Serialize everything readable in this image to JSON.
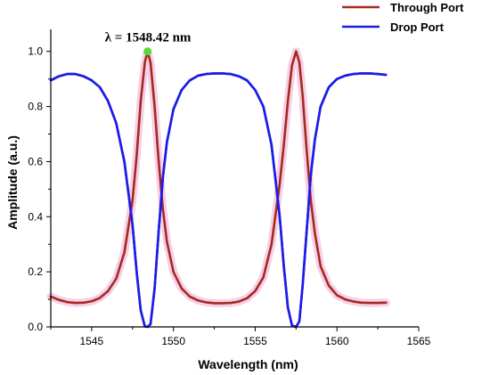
{
  "chart_data": {
    "type": "line",
    "xlabel": "Wavelength (nm)",
    "ylabel": "Amplitude (a.u.)",
    "xlim": [
      1542.5,
      1565
    ],
    "ylim": [
      0,
      1.08
    ],
    "x_ticks": [
      1545,
      1550,
      1555,
      1560,
      1565
    ],
    "x_tick_labels": [
      "1545",
      "1550",
      "1555",
      "1560",
      "1565"
    ],
    "y_ticks": [
      0.0,
      0.2,
      0.4,
      0.6,
      0.8,
      1.0
    ],
    "y_tick_labels": [
      "0.0",
      "0.2",
      "0.4",
      "0.6",
      "0.8",
      "1.0"
    ],
    "grid": false,
    "legend_position": "top-right",
    "annotation": {
      "text": "λ = 1548.42 nm",
      "x": 1548.42,
      "y": 1.0,
      "marker_color": "#55dd33"
    },
    "series": [
      {
        "name": "Through Port",
        "color": "#a52a1e",
        "halo_color": "#f4c7e4",
        "x": [
          1542.5,
          1543,
          1543.5,
          1544,
          1544.5,
          1545,
          1545.5,
          1546,
          1546.5,
          1547,
          1547.5,
          1547.75,
          1548,
          1548.25,
          1548.42,
          1548.6,
          1548.85,
          1549.1,
          1549.35,
          1549.6,
          1550,
          1550.5,
          1551,
          1551.5,
          1552,
          1552.5,
          1553,
          1553.5,
          1554,
          1554.5,
          1555,
          1555.5,
          1556,
          1556.5,
          1556.75,
          1557,
          1557.25,
          1557.5,
          1557.7,
          1557.9,
          1558.15,
          1558.4,
          1558.65,
          1559,
          1559.5,
          1560,
          1560.5,
          1561,
          1561.5,
          1562,
          1562.5,
          1563
        ],
        "y": [
          0.11,
          0.098,
          0.09,
          0.087,
          0.088,
          0.093,
          0.105,
          0.13,
          0.175,
          0.27,
          0.46,
          0.62,
          0.82,
          0.96,
          1.0,
          0.96,
          0.8,
          0.6,
          0.43,
          0.31,
          0.2,
          0.14,
          0.11,
          0.096,
          0.089,
          0.086,
          0.086,
          0.087,
          0.092,
          0.104,
          0.13,
          0.18,
          0.3,
          0.52,
          0.66,
          0.82,
          0.95,
          1.0,
          0.96,
          0.84,
          0.64,
          0.46,
          0.34,
          0.22,
          0.15,
          0.115,
          0.1,
          0.092,
          0.088,
          0.087,
          0.087,
          0.088
        ]
      },
      {
        "name": "Drop Port",
        "color": "#1c1ce8",
        "x": [
          1542.5,
          1543,
          1543.5,
          1544,
          1544.5,
          1545,
          1545.5,
          1546,
          1546.5,
          1547,
          1547.5,
          1547.75,
          1548,
          1548.25,
          1548.42,
          1548.6,
          1548.85,
          1549.1,
          1549.35,
          1549.6,
          1550,
          1550.5,
          1551,
          1551.5,
          1552,
          1552.5,
          1553,
          1553.5,
          1554,
          1554.5,
          1555,
          1555.5,
          1556,
          1556.5,
          1556.75,
          1557,
          1557.25,
          1557.5,
          1557.7,
          1557.9,
          1558.15,
          1558.4,
          1558.65,
          1559,
          1559.5,
          1560,
          1560.5,
          1561,
          1561.5,
          1562,
          1562.5,
          1563
        ],
        "y": [
          0.895,
          0.91,
          0.918,
          0.918,
          0.91,
          0.895,
          0.87,
          0.82,
          0.74,
          0.6,
          0.37,
          0.2,
          0.06,
          0.002,
          0.0,
          0.01,
          0.14,
          0.35,
          0.54,
          0.67,
          0.79,
          0.86,
          0.895,
          0.912,
          0.918,
          0.92,
          0.92,
          0.918,
          0.91,
          0.895,
          0.86,
          0.8,
          0.66,
          0.4,
          0.22,
          0.07,
          0.005,
          0.0,
          0.02,
          0.15,
          0.35,
          0.55,
          0.68,
          0.8,
          0.87,
          0.9,
          0.912,
          0.918,
          0.92,
          0.92,
          0.918,
          0.915
        ]
      }
    ]
  }
}
